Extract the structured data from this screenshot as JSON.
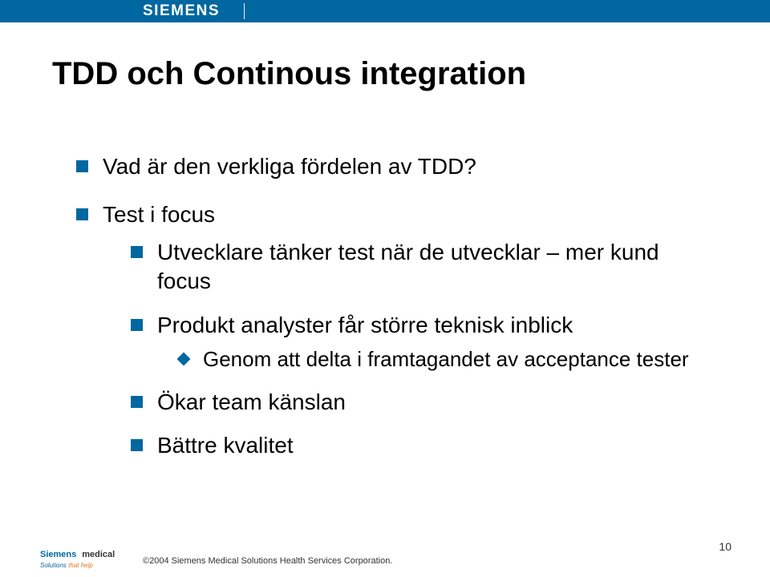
{
  "header": {
    "brand": "SIEMENS",
    "bar_color": "#0067a0"
  },
  "title": "TDD och Continous integration",
  "bullets": [
    {
      "level": 1,
      "text": "Vad är den verkliga fördelen av TDD?"
    },
    {
      "level": 1,
      "text": "Test i focus"
    },
    {
      "level": 2,
      "text": "Utvecklare tänker test när de utvecklar – mer kund focus"
    },
    {
      "level": 2,
      "text": "Produkt analyster får större teknisk inblick"
    },
    {
      "level": 3,
      "text": "Genom att delta i framtagandet av acceptance tester"
    },
    {
      "level": 2,
      "text": "Ökar team känslan"
    },
    {
      "level": 2,
      "text": "Bättre kvalitet"
    }
  ],
  "footer": {
    "logo_line1a": "Siemens",
    "logo_line1b": "medical",
    "logo_line2a": "Solutions",
    "logo_line2b": "that help",
    "copyright": "©2004 Siemens Medical Solutions Health Services Corporation.",
    "page_number": "10"
  },
  "colors": {
    "accent": "#0067a0",
    "orange": "#e87722",
    "text": "#000000"
  }
}
